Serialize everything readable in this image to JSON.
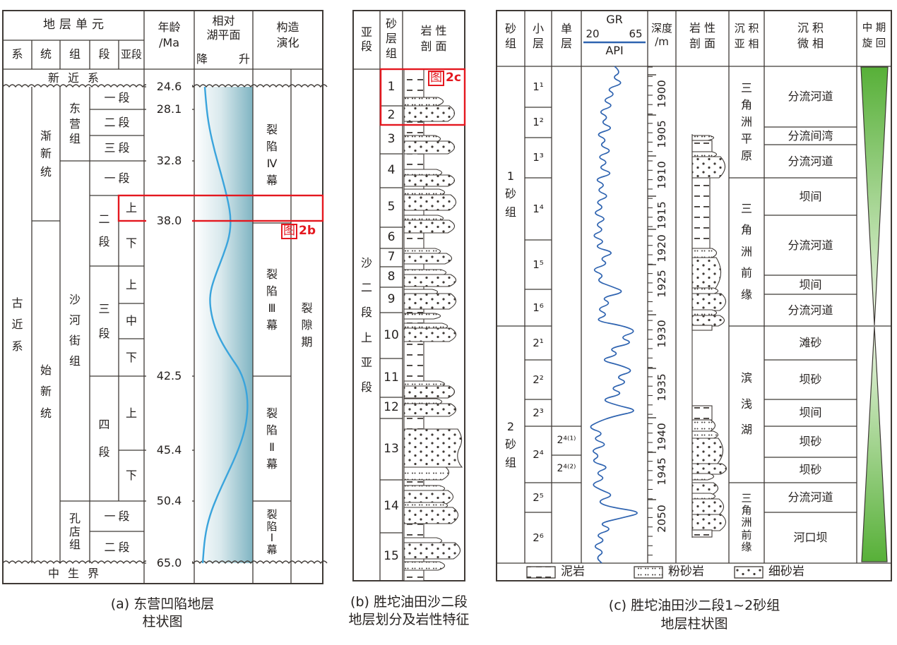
{
  "colors": {
    "line": "#3f3a36",
    "red": "#e4181f",
    "lake_curve": "#3aa4dc",
    "gr_curve": "#2e63b0",
    "teal_right": "#7fb4c2",
    "green_dark": "#57b038",
    "green_light": "#eef7e6"
  },
  "panel_a": {
    "header": {
      "strat_unit": "地层单元",
      "xi": "系",
      "tong": "统",
      "zu": "组",
      "duan": "段",
      "yaduan": "亚段",
      "age_line1": "年龄",
      "age_line2": "/Ma",
      "lake_line1": "相对",
      "lake_line2": "湖平面",
      "lake_fall": "降",
      "lake_rise": "升",
      "tect_line1": "构造",
      "tect_line2": "演化"
    },
    "top_system": "新近系",
    "bottom_system": "中生界",
    "system": "古近系",
    "series": [
      "渐新统",
      "始新统"
    ],
    "formations": [
      "东营组",
      "沙河街组",
      "孔店组"
    ],
    "dongying_members": [
      "一段",
      "二段",
      "三段"
    ],
    "shahejie_members": [
      "一段",
      "二段",
      "三段",
      "四段"
    ],
    "kongdian_members": [
      "一段",
      "二段"
    ],
    "submembers_er": [
      "上",
      "下"
    ],
    "submembers_san": [
      "上",
      "中",
      "下"
    ],
    "submembers_si": [
      "上",
      "下"
    ],
    "ages": [
      "24.6",
      "28.1",
      "32.8",
      "38.0",
      "42.5",
      "45.4",
      "50.4",
      "65.0"
    ],
    "rift_episodes": [
      "裂陷Ⅳ幕",
      "裂陷Ⅲ幕",
      "裂陷Ⅱ幕",
      "裂陷Ⅰ幕"
    ],
    "rift_period": "裂隙期",
    "fig_box": "图",
    "fig_id": "2b",
    "caption_line1": "(a) 东营凹陷地层",
    "caption_line2": "柱状图"
  },
  "panel_b": {
    "header": {
      "yaduan": "亚段",
      "sand_group": "砂层组",
      "lith_line1": "岩 性",
      "lith_line2": "剖 面"
    },
    "yaduan_label": "沙二段上亚段",
    "sand_groups": [
      "1",
      "2",
      "3",
      "4",
      "5",
      "6",
      "7",
      "8",
      "9",
      "10",
      "11",
      "12",
      "13",
      "14",
      "15"
    ],
    "fig_box": "图",
    "fig_id": "2c",
    "caption_line1": "(b) 胜坨油田沙二段",
    "caption_line2": "地层划分及岩性特征"
  },
  "panel_c": {
    "header": {
      "sand_group": "砂组",
      "sub_layer": "小层",
      "single_layer": "单层",
      "gr": "GR",
      "gr_min": "20",
      "gr_max": "65",
      "gr_unit": "API",
      "depth_l1": "深度",
      "depth_l2": "/m",
      "lith_l1": "岩 性",
      "lith_l2": "剖 面",
      "subfacies_l1": "沉 积",
      "subfacies_l2": "亚 相",
      "microfacies_l1": "沉 积",
      "microfacies_l2": "微 相",
      "cycle_l1": "中 期",
      "cycle_l2": "旋 回"
    },
    "sand_groups": [
      "1砂组",
      "2砂组"
    ],
    "sub_layers": [
      "1¹",
      "1²",
      "1³",
      "1⁴",
      "1⁵",
      "1⁶",
      "2¹",
      "2²",
      "2³",
      "2⁴",
      "2⁵",
      "2⁶"
    ],
    "single_layers": [
      "2⁴⁽¹⁾",
      "2⁴⁽²⁾"
    ],
    "depth_labels": [
      "1900",
      "1905",
      "1910",
      "1915",
      "1920",
      "1925",
      "1930",
      "1935",
      "1940",
      "1945",
      "2050"
    ],
    "subfacies": [
      "三角洲平原",
      "三角洲前缘",
      "滨浅湖",
      "三角洲前缘"
    ],
    "microfacies": [
      "分流河道",
      "分流间湾",
      "分流河道",
      "坝间",
      "分流河道",
      "坝间",
      "分流河道",
      "滩砂",
      "坝砂",
      "坝间",
      "坝砂",
      "坝砂",
      "分流河道",
      "河口坝"
    ],
    "legend": [
      {
        "label": "泥岩"
      },
      {
        "label": "粉砂岩"
      },
      {
        "label": "细砂岩"
      }
    ],
    "caption_line1": "(c) 胜坨油田沙二段1~2砂组",
    "caption_line2": "地层柱状图"
  }
}
